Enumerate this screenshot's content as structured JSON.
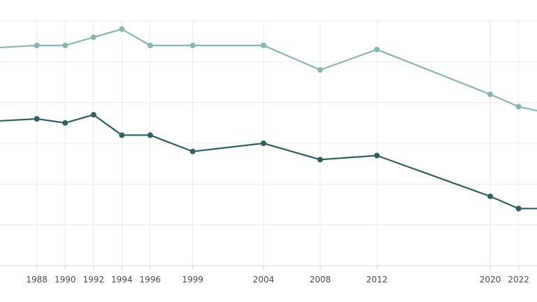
{
  "chart_data": {
    "type": "line",
    "title": "",
    "xlabel": "",
    "ylabel": "",
    "grid": true,
    "legend": "none",
    "x": [
      1988,
      1990,
      1992,
      1994,
      1996,
      1999,
      2004,
      2008,
      2012,
      2020,
      2022
    ],
    "x_tick_labels": [
      "1988",
      "1990",
      "1992",
      "1994",
      "1996",
      "1999",
      "2004",
      "2008",
      "2012",
      "2020",
      "2022"
    ],
    "xlim": [
      1985.4,
      2023.3
    ],
    "ylim": [
      0,
      60
    ],
    "series": [
      {
        "color": "#8ab5b1",
        "points": [
          [
            1985.4,
            53.5
          ],
          [
            1988,
            54
          ],
          [
            1990,
            54
          ],
          [
            1992,
            56
          ],
          [
            1994,
            58
          ],
          [
            1996,
            54
          ],
          [
            1999,
            54
          ],
          [
            2004,
            54
          ],
          [
            2008,
            48
          ],
          [
            2012,
            53
          ],
          [
            2020,
            42
          ],
          [
            2022,
            39
          ],
          [
            2023.3,
            38
          ]
        ]
      },
      {
        "color": "#2f605f",
        "points": [
          [
            1985.4,
            35.5
          ],
          [
            1988,
            36
          ],
          [
            1990,
            35
          ],
          [
            1992,
            37
          ],
          [
            1994,
            32
          ],
          [
            1996,
            32
          ],
          [
            1999,
            28
          ],
          [
            2004,
            30
          ],
          [
            2008,
            26
          ],
          [
            2012,
            27
          ],
          [
            2020,
            17
          ],
          [
            2022,
            14
          ],
          [
            2023.3,
            14
          ]
        ]
      }
    ],
    "point_markers_at": [
      1988,
      1990,
      1992,
      1994,
      1996,
      1999,
      2004,
      2008,
      2012,
      2020,
      2022
    ]
  }
}
